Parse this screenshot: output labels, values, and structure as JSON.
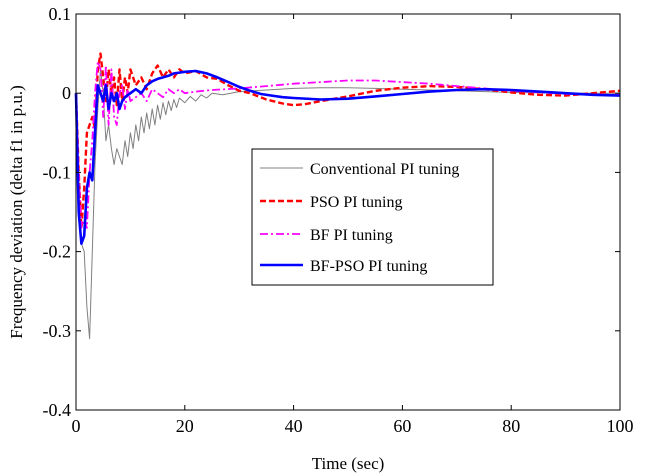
{
  "chart_data": {
    "type": "line",
    "title": "",
    "xlabel": "Time (sec)",
    "ylabel": "Frequency deviation (delta f1  in p.u.)",
    "xlim": [
      0,
      100
    ],
    "ylim": [
      -0.4,
      0.1
    ],
    "xticks": [
      0,
      20,
      40,
      60,
      80,
      100
    ],
    "xtick_labels": [
      "0",
      "20",
      "40",
      "60",
      "80",
      "100"
    ],
    "yticks": [
      -0.4,
      -0.3,
      -0.2,
      -0.1,
      0,
      0.1
    ],
    "ytick_labels": [
      "-0.4",
      "-0.3",
      "-0.2",
      "-0.1",
      "0",
      "0.1"
    ],
    "grid": false,
    "legend_position": "center-right",
    "series": [
      {
        "name": "Conventional PI tuning",
        "color": "#808080",
        "style": "solid",
        "points": [
          [
            0,
            0
          ],
          [
            0.5,
            -0.12
          ],
          [
            1,
            -0.19
          ],
          [
            1.5,
            -0.2
          ],
          [
            2,
            -0.27
          ],
          [
            2.5,
            -0.31
          ],
          [
            3,
            -0.2
          ],
          [
            3.5,
            -0.09
          ],
          [
            4,
            -0.02
          ],
          [
            4.5,
            0.03
          ],
          [
            5,
            0.0
          ],
          [
            5.5,
            -0.06
          ],
          [
            6,
            -0.04
          ],
          [
            6.5,
            -0.07
          ],
          [
            7,
            -0.09
          ],
          [
            7.5,
            -0.07
          ],
          [
            8,
            -0.08
          ],
          [
            8.5,
            -0.09
          ],
          [
            9,
            -0.06
          ],
          [
            9.5,
            -0.08
          ],
          [
            10,
            -0.05
          ],
          [
            10.5,
            -0.07
          ],
          [
            11,
            -0.04
          ],
          [
            11.5,
            -0.06
          ],
          [
            12,
            -0.03
          ],
          [
            12.5,
            -0.05
          ],
          [
            13,
            -0.025
          ],
          [
            13.5,
            -0.045
          ],
          [
            14,
            -0.02
          ],
          [
            14.5,
            -0.04
          ],
          [
            15,
            -0.015
          ],
          [
            15.5,
            -0.033
          ],
          [
            16,
            -0.012
          ],
          [
            16.5,
            -0.027
          ],
          [
            17,
            -0.01
          ],
          [
            17.5,
            -0.022
          ],
          [
            18,
            -0.008
          ],
          [
            18.5,
            -0.018
          ],
          [
            19,
            -0.006
          ],
          [
            20,
            -0.012
          ],
          [
            21,
            -0.004
          ],
          [
            22,
            -0.01
          ],
          [
            23,
            -0.002
          ],
          [
            24,
            -0.006
          ],
          [
            25,
            0.0
          ],
          [
            27,
            -0.002
          ],
          [
            30,
            0.002
          ],
          [
            35,
            0.004
          ],
          [
            40,
            0.006
          ],
          [
            45,
            0.007
          ],
          [
            50,
            0.007
          ],
          [
            55,
            0.006
          ],
          [
            60,
            0.005
          ],
          [
            70,
            0.003
          ],
          [
            80,
            0.001
          ],
          [
            90,
            0.0
          ],
          [
            100,
            0.0
          ]
        ]
      },
      {
        "name": "PSO PI tuning",
        "color": "#ff0000",
        "style": "dashed",
        "points": [
          [
            0,
            0
          ],
          [
            0.5,
            -0.1
          ],
          [
            1,
            -0.17
          ],
          [
            1.5,
            -0.12
          ],
          [
            2,
            -0.05
          ],
          [
            2.5,
            -0.04
          ],
          [
            3,
            -0.03
          ],
          [
            3.5,
            -0.045
          ],
          [
            4,
            0.03
          ],
          [
            4.5,
            0.05
          ],
          [
            5,
            0.02
          ],
          [
            5.5,
            -0.01
          ],
          [
            6,
            0.03
          ],
          [
            6.5,
            0.0
          ],
          [
            7,
            0.02
          ],
          [
            7.5,
            -0.015
          ],
          [
            8,
            0.03
          ],
          [
            8.5,
            -0.01
          ],
          [
            9,
            0.02
          ],
          [
            9.5,
            0.0
          ],
          [
            10,
            0.03
          ],
          [
            11,
            0.01
          ],
          [
            12,
            0.02
          ],
          [
            13,
            0.005
          ],
          [
            14,
            0.025
          ],
          [
            15,
            0.035
          ],
          [
            16,
            0.02
          ],
          [
            17,
            0.03
          ],
          [
            18,
            0.02
          ],
          [
            19,
            0.03
          ],
          [
            20,
            0.025
          ],
          [
            22,
            0.028
          ],
          [
            24,
            0.02
          ],
          [
            26,
            0.018
          ],
          [
            28,
            0.01
          ],
          [
            30,
            0.003
          ],
          [
            32,
            0.0
          ],
          [
            35,
            -0.008
          ],
          [
            38,
            -0.013
          ],
          [
            40,
            -0.015
          ],
          [
            42,
            -0.014
          ],
          [
            45,
            -0.01
          ],
          [
            50,
            -0.004
          ],
          [
            55,
            0.003
          ],
          [
            60,
            0.007
          ],
          [
            65,
            0.009
          ],
          [
            70,
            0.008
          ],
          [
            75,
            0.005
          ],
          [
            80,
            0.001
          ],
          [
            85,
            -0.002
          ],
          [
            90,
            -0.003
          ],
          [
            95,
            0.0
          ],
          [
            100,
            0.003
          ]
        ]
      },
      {
        "name": "BF PI tuning",
        "color": "#ff00ff",
        "style": "dashdot",
        "points": [
          [
            0,
            0
          ],
          [
            0.5,
            -0.1
          ],
          [
            1,
            -0.17
          ],
          [
            1.5,
            -0.16
          ],
          [
            2,
            -0.17
          ],
          [
            2.5,
            -0.1
          ],
          [
            3,
            -0.06
          ],
          [
            3.5,
            0.0
          ],
          [
            4,
            0.04
          ],
          [
            4.5,
            0.03
          ],
          [
            5,
            -0.03
          ],
          [
            5.5,
            0.035
          ],
          [
            6,
            -0.04
          ],
          [
            6.5,
            0.03
          ],
          [
            7,
            -0.03
          ],
          [
            7.5,
            -0.04
          ],
          [
            8,
            0.0
          ],
          [
            8.5,
            0.01
          ],
          [
            9,
            -0.02
          ],
          [
            9.5,
            0.005
          ],
          [
            10,
            -0.01
          ],
          [
            11,
            -0.005
          ],
          [
            12,
            0.0
          ],
          [
            13,
            -0.01
          ],
          [
            14,
            0.005
          ],
          [
            15,
            0.0
          ],
          [
            16,
            -0.005
          ],
          [
            17,
            0.005
          ],
          [
            18,
            0.0
          ],
          [
            19,
            0.005
          ],
          [
            20,
            0.0
          ],
          [
            22,
            0.002
          ],
          [
            25,
            0.004
          ],
          [
            30,
            0.006
          ],
          [
            35,
            0.009
          ],
          [
            40,
            0.012
          ],
          [
            45,
            0.014
          ],
          [
            50,
            0.016
          ],
          [
            55,
            0.016
          ],
          [
            60,
            0.014
          ],
          [
            65,
            0.012
          ],
          [
            70,
            0.009
          ],
          [
            75,
            0.006
          ],
          [
            80,
            0.003
          ],
          [
            85,
            0.001
          ],
          [
            90,
            -0.001
          ],
          [
            95,
            -0.002
          ],
          [
            100,
            -0.002
          ]
        ]
      },
      {
        "name": "BF-PSO PI tuning",
        "color": "#0000ff",
        "style": "solid",
        "points": [
          [
            0,
            0
          ],
          [
            0.5,
            -0.15
          ],
          [
            1,
            -0.19
          ],
          [
            1.5,
            -0.18
          ],
          [
            2,
            -0.12
          ],
          [
            2.5,
            -0.1
          ],
          [
            3,
            -0.11
          ],
          [
            3.5,
            -0.05
          ],
          [
            4,
            0.01
          ],
          [
            4.5,
            0.0
          ],
          [
            5,
            -0.01
          ],
          [
            5.5,
            0.01
          ],
          [
            6,
            -0.02
          ],
          [
            6.5,
            0.0
          ],
          [
            7,
            -0.01
          ],
          [
            7.5,
            0.0
          ],
          [
            8,
            -0.02
          ],
          [
            8.5,
            -0.01
          ],
          [
            9,
            -0.005
          ],
          [
            10,
            0.0
          ],
          [
            11,
            0.005
          ],
          [
            12,
            0.0
          ],
          [
            13,
            0.01
          ],
          [
            14,
            0.015
          ],
          [
            15,
            0.018
          ],
          [
            16,
            0.02
          ],
          [
            17,
            0.022
          ],
          [
            18,
            0.025
          ],
          [
            19,
            0.026
          ],
          [
            20,
            0.027
          ],
          [
            22,
            0.028
          ],
          [
            24,
            0.025
          ],
          [
            26,
            0.02
          ],
          [
            28,
            0.014
          ],
          [
            30,
            0.008
          ],
          [
            32,
            0.003
          ],
          [
            34,
            -0.001
          ],
          [
            36,
            -0.003
          ],
          [
            38,
            -0.005
          ],
          [
            40,
            -0.006
          ],
          [
            45,
            -0.008
          ],
          [
            50,
            -0.007
          ],
          [
            55,
            -0.004
          ],
          [
            60,
            -0.001
          ],
          [
            65,
            0.002
          ],
          [
            70,
            0.004
          ],
          [
            75,
            0.005
          ],
          [
            80,
            0.004
          ],
          [
            85,
            0.002
          ],
          [
            90,
            0.0
          ],
          [
            95,
            -0.002
          ],
          [
            100,
            -0.003
          ]
        ]
      }
    ]
  }
}
